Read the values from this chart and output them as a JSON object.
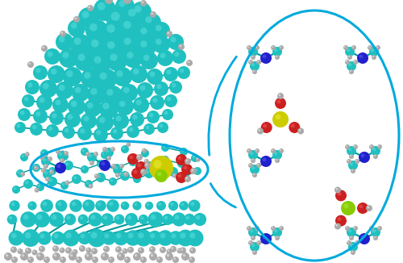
{
  "figure_width": 5.0,
  "figure_height": 3.26,
  "dpi": 100,
  "bg_color": "#ffffff",
  "cyan": "#20C0C0",
  "cyan_dark": "#009999",
  "cyan_light": "#60E0E0",
  "blue": "#2020CC",
  "blue_light": "#6060EE",
  "red": "#CC2020",
  "red_light": "#EE6060",
  "yellow": "#CCCC00",
  "yellow_light": "#EEEE44",
  "green": "#88CC00",
  "green_light": "#AAEE44",
  "white_atom": "#E0E0E0",
  "white_light": "#F8F8F8",
  "gray": "#AAAAAA",
  "oval_color": "#00AADD",
  "oval_lw": 2.2
}
